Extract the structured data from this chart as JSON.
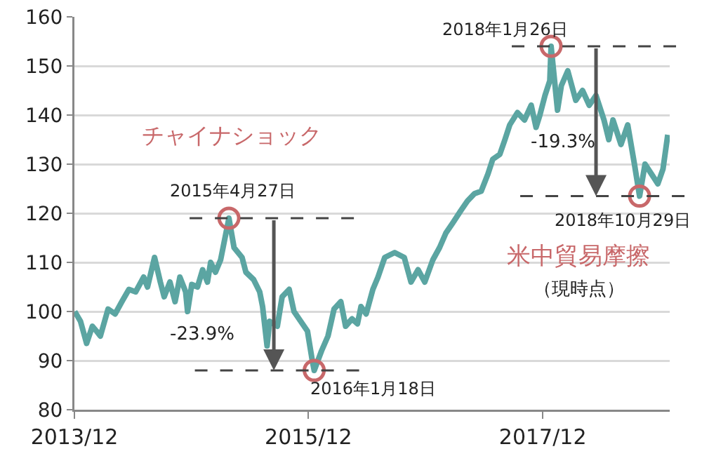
{
  "chart_data": {
    "type": "line",
    "x": [
      "2014-01-01",
      "2014-01-19",
      "2014-02-07",
      "2014-02-25",
      "2014-03-10",
      "2014-03-22",
      "2014-04-15",
      "2014-05-07",
      "2014-05-28",
      "2014-06-19",
      "2014-07-10",
      "2014-08-04",
      "2014-08-16",
      "2014-09-07",
      "2014-09-25",
      "2014-10-07",
      "2014-10-25",
      "2014-11-10",
      "2014-11-25",
      "2014-12-13",
      "2014-12-19",
      "2015-01-01",
      "2015-01-19",
      "2015-02-04",
      "2015-02-19",
      "2015-03-01",
      "2015-03-16",
      "2015-04-01",
      "2015-04-27",
      "2015-05-13",
      "2015-06-07",
      "2015-06-19",
      "2015-07-13",
      "2015-08-01",
      "2015-08-10",
      "2015-08-24",
      "2015-09-01",
      "2015-09-25",
      "2015-10-10",
      "2015-11-01",
      "2015-11-16",
      "2015-12-07",
      "2015-12-28",
      "2016-01-12",
      "2016-01-18",
      "2016-02-10",
      "2016-03-01",
      "2016-03-20",
      "2016-04-10",
      "2016-04-25",
      "2016-05-15",
      "2016-06-01",
      "2016-06-12",
      "2016-06-28",
      "2016-07-19",
      "2016-08-04",
      "2016-08-25",
      "2016-09-25",
      "2016-10-25",
      "2016-11-15",
      "2016-12-07",
      "2016-12-28",
      "2017-01-22",
      "2017-02-12",
      "2017-03-04",
      "2017-03-25",
      "2017-04-19",
      "2017-05-10",
      "2017-06-01",
      "2017-06-22",
      "2017-07-13",
      "2017-07-28",
      "2017-08-19",
      "2017-09-04",
      "2017-09-19",
      "2017-10-13",
      "2017-11-04",
      "2017-11-25",
      "2017-12-10",
      "2017-12-22",
      "2018-01-07",
      "2018-01-22",
      "2018-01-26",
      "2018-02-15",
      "2018-02-27",
      "2018-03-19",
      "2018-04-13",
      "2018-05-04",
      "2018-05-25",
      "2018-06-15",
      "2018-07-10",
      "2018-07-25",
      "2018-08-07",
      "2018-09-01",
      "2018-09-22",
      "2018-10-13",
      "2018-10-29",
      "2018-11-15",
      "2018-12-05",
      "2018-12-25",
      "2019-01-10",
      "2019-01-25"
    ],
    "series": [
      {
        "color": "#5ba5a2",
        "values": [
          100,
          98,
          93.5,
          97,
          96,
          95,
          100.5,
          99.5,
          102,
          104.5,
          104,
          107,
          105,
          111,
          106,
          103,
          106,
          102,
          107,
          104,
          100,
          105.5,
          105,
          108.5,
          106,
          110,
          108,
          110.5,
          119,
          113,
          111,
          108,
          106.5,
          104,
          101,
          93,
          98,
          97,
          103,
          104.5,
          100,
          98,
          96,
          90,
          88,
          92,
          95,
          100.5,
          102,
          97,
          98.5,
          97.5,
          101,
          99.5,
          104.5,
          107,
          111,
          112,
          111,
          106,
          108.5,
          106,
          110.5,
          113,
          116,
          118,
          120.5,
          122.5,
          124,
          124.5,
          128,
          131,
          132,
          135,
          138,
          140.5,
          139,
          142,
          137.5,
          140,
          144,
          147,
          154,
          141,
          146,
          149,
          143,
          145,
          142,
          144,
          139,
          135,
          139,
          134,
          138,
          130,
          123.5,
          130,
          128,
          126,
          129,
          136
        ]
      }
    ],
    "xlim": [
      "2013-12-31",
      "2019-01-31"
    ],
    "xticks": [
      {
        "value": "2013-12-31",
        "label": "2013/12"
      },
      {
        "value": "2015-12-31",
        "label": "2015/12"
      },
      {
        "value": "2017-12-31",
        "label": "2017/12"
      }
    ],
    "ylim": [
      80,
      160
    ],
    "yticks": [
      80,
      90,
      100,
      110,
      120,
      130,
      140,
      150,
      160
    ],
    "grid": "y",
    "marker": "none",
    "line_style": "solid",
    "annotations": [
      "チャイナショック",
      {
        "text": "2015年4月27日",
        "x": "2015-04-27",
        "y": 119
      },
      {
        "text": "2016年1月18日",
        "x": "2016-01-18",
        "y": 88
      },
      "-23.9%",
      {
        "text": "2018年1月26日",
        "x": "2018-01-26",
        "y": 154
      },
      {
        "text": "2018年10月29日",
        "x": "2018-10-29",
        "y": 123.5
      },
      "-19.3%",
      "米中貿易摩擦",
      "（現時点）"
    ]
  }
}
